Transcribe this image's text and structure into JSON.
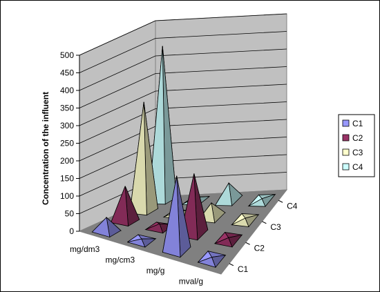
{
  "chart_data": {
    "type": "bar",
    "style": "3d-pyramid",
    "title": "",
    "ylabel": "Concentration of the influent",
    "ylim": [
      0,
      500
    ],
    "y_ticks": [
      0,
      50,
      100,
      150,
      200,
      250,
      300,
      350,
      400,
      450,
      500
    ],
    "categories": [
      "mg/dm3",
      "mg/cm3",
      "mg/g",
      "mval/g"
    ],
    "depth_labels": [
      "C1",
      "C2",
      "C3",
      "C4"
    ],
    "grid": true,
    "legend_position": "right",
    "series": [
      {
        "name": "C1",
        "color": "#9999FF",
        "values": [
          40,
          5,
          210,
          5
        ]
      },
      {
        "name": "C2",
        "color": "#993366",
        "values": [
          100,
          10,
          170,
          5
        ]
      },
      {
        "name": "C3",
        "color": "#FFFFCC",
        "values": [
          310,
          10,
          40,
          5
        ]
      },
      {
        "name": "C4",
        "color": "#CCFFFF",
        "values": [
          440,
          10,
          50,
          5
        ]
      }
    ]
  }
}
